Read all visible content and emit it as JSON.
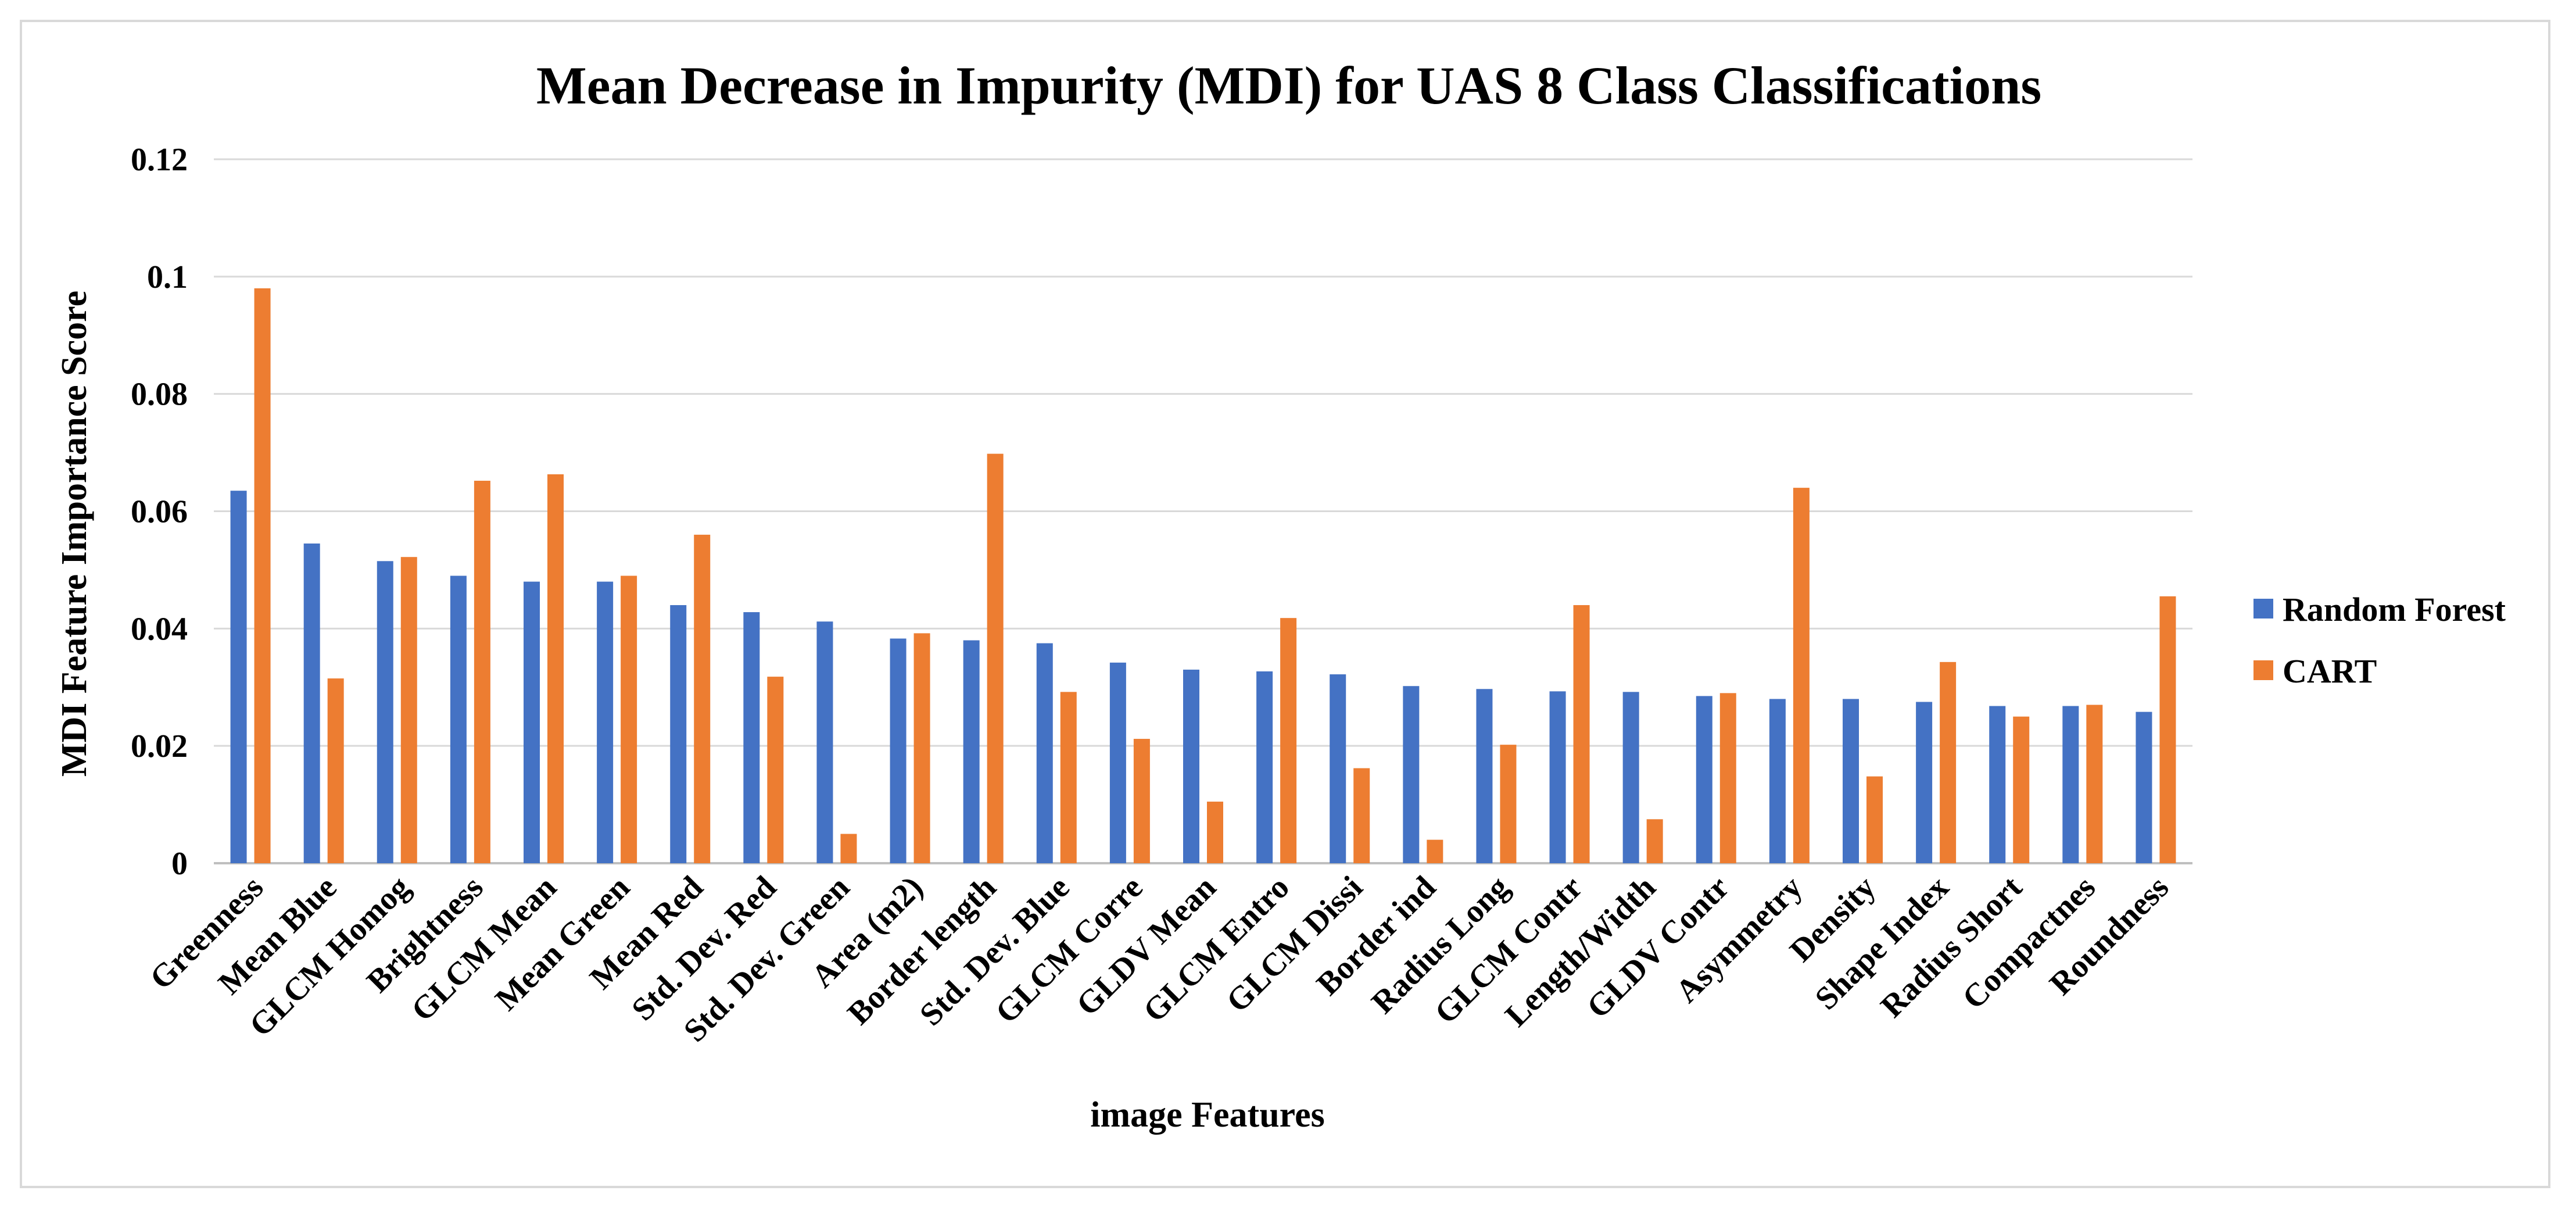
{
  "chart_data": {
    "type": "bar",
    "title": "Mean Decrease in Impurity (MDI) for UAS 8 Class Classifications",
    "xlabel": "image Features",
    "ylabel": "MDI Feature Importance Score",
    "ylim": [
      0,
      0.12
    ],
    "yticks": [
      0,
      0.02,
      0.04,
      0.06,
      0.08,
      0.1,
      0.12
    ],
    "ytick_labels": [
      "0",
      "0.02",
      "0.04",
      "0.06",
      "0.08",
      "0.1",
      "0.12"
    ],
    "grid": true,
    "legend_position": "right",
    "categories": [
      "Greenness",
      "Mean Blue",
      "GLCM Homog",
      "Brightness",
      "GLCM Mean",
      "Mean Green",
      "Mean Red",
      "Std. Dev. Red",
      "Std. Dev. Green",
      "Area (m2)",
      "Border length",
      "Std. Dev. Blue",
      "GLCM Corre",
      "GLDV Mean",
      "GLCM Entro",
      "GLCM Dissi",
      "Border ind",
      "Radius Long",
      "GLCM Contr",
      "Length/Width",
      "GLDV Contr",
      "Asymmetry",
      "Density",
      "Shape Index",
      "Radius Short",
      "Compactnes",
      "Roundness"
    ],
    "series": [
      {
        "name": "Random Forest",
        "color": "#4472c4",
        "values": [
          0.0635,
          0.0545,
          0.0515,
          0.049,
          0.048,
          0.048,
          0.044,
          0.0428,
          0.0412,
          0.0383,
          0.038,
          0.0375,
          0.0342,
          0.033,
          0.0327,
          0.0322,
          0.0302,
          0.0297,
          0.0293,
          0.0292,
          0.0285,
          0.028,
          0.028,
          0.0275,
          0.0268,
          0.0268,
          0.0258
        ]
      },
      {
        "name": "CART",
        "color": "#ed7d31",
        "values": [
          0.098,
          0.0315,
          0.0522,
          0.0652,
          0.0663,
          0.049,
          0.056,
          0.0318,
          0.005,
          0.0392,
          0.0698,
          0.0292,
          0.0212,
          0.0105,
          0.0418,
          0.0162,
          0.004,
          0.0202,
          0.044,
          0.0075,
          0.029,
          0.064,
          0.0148,
          0.0343,
          0.025,
          0.027,
          0.0455
        ]
      }
    ]
  }
}
